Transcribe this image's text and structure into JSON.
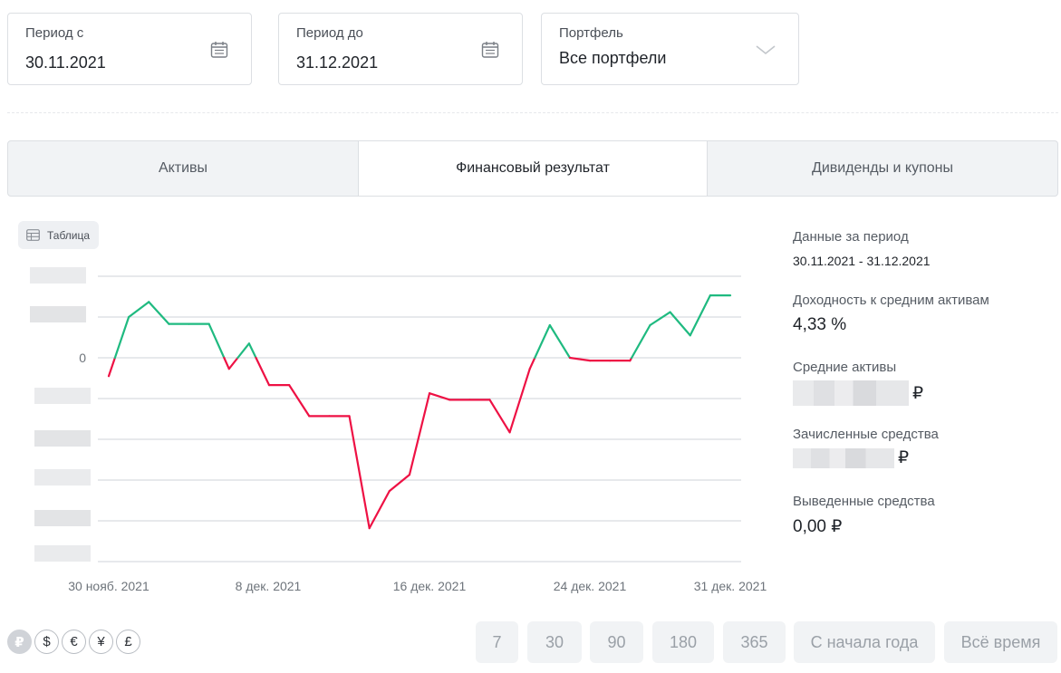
{
  "filters": {
    "period_from": {
      "label": "Период с",
      "value": "30.11.2021"
    },
    "period_to": {
      "label": "Период до",
      "value": "31.12.2021"
    },
    "portfolio": {
      "label": "Портфель",
      "value": "Все портфели"
    }
  },
  "tabs": [
    {
      "label": "Активы",
      "active": false
    },
    {
      "label": "Финансовый результат",
      "active": true
    },
    {
      "label": "Дивиденды и купоны",
      "active": false
    }
  ],
  "table_button": {
    "label": "Таблица",
    "icon": "table-icon"
  },
  "chart_data": {
    "type": "line",
    "title": "",
    "xlabel": "",
    "ylabel": "",
    "x_ticks": [
      "30 нояб. 2021",
      "8 дек. 2021",
      "16 дек. 2021",
      "24 дек. 2021",
      "31 дек. 2021"
    ],
    "y_ticks_visible": [
      "0"
    ],
    "y_ticks_other_values_hidden": true,
    "grid": "horizontal",
    "positive_color": "#1fba80",
    "negative_color": "#ee1144",
    "series": [
      {
        "values": [
          [
            0,
            -0.45
          ],
          [
            1,
            1.0
          ],
          [
            2,
            1.37
          ],
          [
            3,
            0.83
          ],
          [
            4,
            0.83
          ],
          [
            5,
            0.83
          ],
          [
            6,
            -0.27
          ],
          [
            7,
            0.35
          ],
          [
            8,
            -0.67
          ],
          [
            9,
            -0.67
          ],
          [
            10,
            -1.43
          ],
          [
            11,
            -1.43
          ],
          [
            12,
            -1.43
          ],
          [
            13,
            -4.18
          ],
          [
            14,
            -3.27
          ],
          [
            15,
            -2.87
          ],
          [
            16,
            -0.87
          ],
          [
            17,
            -1.03
          ],
          [
            18,
            -1.03
          ],
          [
            19,
            -1.03
          ],
          [
            20,
            -1.83
          ],
          [
            21,
            -0.27
          ],
          [
            22,
            0.8
          ],
          [
            23,
            0.0
          ],
          [
            24,
            -0.07
          ],
          [
            25,
            -0.07
          ],
          [
            26,
            -0.07
          ],
          [
            27,
            0.8
          ],
          [
            28,
            1.12
          ],
          [
            29,
            0.55
          ],
          [
            30,
            1.53
          ],
          [
            31,
            1.53
          ]
        ]
      }
    ]
  },
  "summary": {
    "period": {
      "label": "Данные за период",
      "value": "30.11.2021 - 31.12.2021"
    },
    "yield": {
      "label": "Доходность к средним активам",
      "value": "4,33 %"
    },
    "avg_assets": {
      "label": "Средние активы",
      "currency": "₽"
    },
    "credited": {
      "label": "Зачисленные средства",
      "currency": "₽"
    },
    "withdrawn": {
      "label": "Выведенные средства",
      "value": "0,00 ₽"
    }
  },
  "currencies": [
    {
      "symbol": "₽",
      "active": true
    },
    {
      "symbol": "$",
      "active": false
    },
    {
      "symbol": "€",
      "active": false
    },
    {
      "symbol": "¥",
      "active": false
    },
    {
      "symbol": "£",
      "active": false
    }
  ],
  "period_buttons": [
    "7",
    "30",
    "90",
    "180",
    "365",
    "С начала года",
    "Всё время"
  ]
}
